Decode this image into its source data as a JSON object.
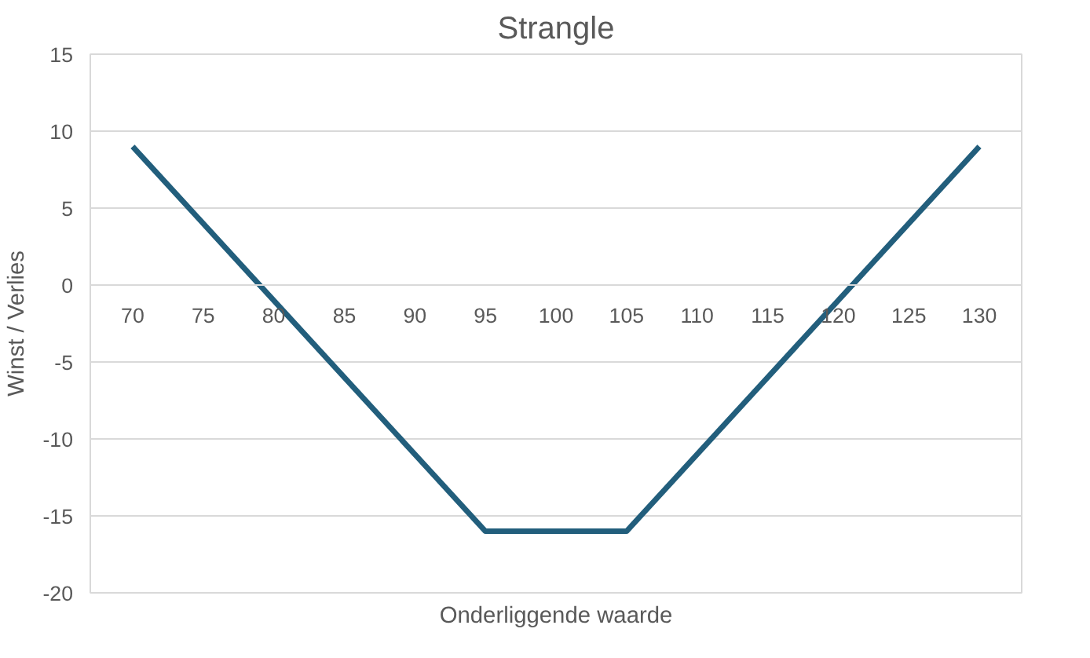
{
  "chart_data": {
    "type": "line",
    "title": "Strangle",
    "xlabel": "Onderliggende waarde",
    "ylabel": "Winst / Verlies",
    "categories": [
      "70",
      "75",
      "80",
      "85",
      "90",
      "95",
      "100",
      "105",
      "110",
      "115",
      "120",
      "125",
      "130"
    ],
    "series": [
      {
        "color": "#225e7c",
        "values": [
          9,
          4,
          -1,
          -6,
          -11,
          -16,
          -16,
          -16,
          -11,
          -6,
          -1,
          4,
          9
        ]
      }
    ],
    "ylim": [
      -20,
      15
    ],
    "yticks": [
      -20,
      -15,
      -10,
      -5,
      0,
      5,
      10,
      15
    ],
    "grid": "y",
    "marker": "none",
    "line_style": "solid"
  }
}
